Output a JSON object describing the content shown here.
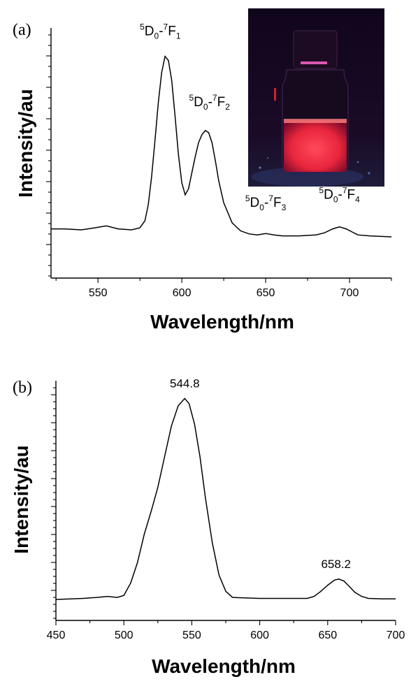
{
  "chart_data": [
    {
      "panel": "(a)",
      "type": "line",
      "xlabel": "Wavelength/nm",
      "ylabel": "Intensity/au",
      "xlim": [
        522,
        725
      ],
      "ylim": [
        0,
        1.0
      ],
      "x_ticks": [
        550,
        600,
        650,
        700
      ],
      "y_tick_labels": false,
      "x": [
        522,
        530,
        540,
        548,
        555,
        562,
        570,
        575,
        578,
        580,
        582,
        584,
        586,
        588,
        590,
        592,
        594,
        596,
        598,
        600,
        602,
        604,
        606,
        608,
        610,
        612,
        614,
        616,
        618,
        620,
        622,
        625,
        630,
        635,
        640,
        645,
        650,
        655,
        660,
        670,
        680,
        685,
        690,
        694,
        698,
        705,
        712,
        725
      ],
      "series": [
        {
          "values": [
            0.12,
            0.12,
            0.115,
            0.125,
            0.135,
            0.12,
            0.115,
            0.125,
            0.16,
            0.24,
            0.38,
            0.56,
            0.75,
            0.9,
            0.98,
            0.96,
            0.86,
            0.68,
            0.49,
            0.35,
            0.29,
            0.32,
            0.4,
            0.48,
            0.55,
            0.59,
            0.61,
            0.6,
            0.55,
            0.46,
            0.36,
            0.25,
            0.15,
            0.11,
            0.095,
            0.09,
            0.097,
            0.09,
            0.085,
            0.085,
            0.09,
            0.1,
            0.12,
            0.13,
            0.12,
            0.09,
            0.085,
            0.08
          ]
        }
      ],
      "annotations": [
        {
          "x": 590.5,
          "y": 0.98,
          "sup": "5",
          "base": "D",
          "sub": "0",
          "sup2": "7",
          "base2": "F",
          "sub2": "1",
          "dx": -8,
          "dy": -30
        },
        {
          "x": 614,
          "y": 0.61,
          "sup": "5",
          "base": "D",
          "sub": "0",
          "sup2": "7",
          "base2": "F",
          "sub2": "2",
          "dx": 6,
          "dy": -35
        },
        {
          "x": 650,
          "y": 0.097,
          "sup": "5",
          "base": "D",
          "sub": "0",
          "sup2": "7",
          "base2": "F",
          "sub2": "3",
          "dx": 0,
          "dy": -38
        },
        {
          "x": 694,
          "y": 0.13,
          "sup": "5",
          "base": "D",
          "sub": "0",
          "sup2": "7",
          "base2": "F",
          "sub2": "4",
          "dx": 0,
          "dy": -40
        }
      ]
    },
    {
      "panel": "(b)",
      "type": "line",
      "xlabel": "Wavelength/nm",
      "ylabel": "Intensity/au",
      "xlim": [
        450,
        700
      ],
      "ylim": [
        0,
        1.0
      ],
      "x_ticks": [
        450,
        500,
        550,
        600,
        650,
        700
      ],
      "y_tick_labels": false,
      "x": [
        450,
        470,
        480,
        488,
        495,
        500,
        505,
        510,
        515,
        520,
        525,
        530,
        535,
        540,
        544.8,
        548,
        552,
        556,
        560,
        565,
        570,
        575,
        580,
        600,
        620,
        635,
        640,
        645,
        650,
        655,
        658.2,
        662,
        665,
        670,
        675,
        680,
        690,
        700
      ],
      "series": [
        {
          "values": [
            0.0,
            0.005,
            0.01,
            0.015,
            0.01,
            0.02,
            0.08,
            0.18,
            0.32,
            0.43,
            0.55,
            0.7,
            0.85,
            0.95,
            0.985,
            0.96,
            0.86,
            0.7,
            0.5,
            0.28,
            0.12,
            0.04,
            0.01,
            0.005,
            0.005,
            0.005,
            0.015,
            0.04,
            0.07,
            0.095,
            0.1,
            0.09,
            0.07,
            0.035,
            0.015,
            0.005,
            0.003,
            0.003
          ]
        }
      ],
      "annotations": [
        {
          "x": 544.8,
          "y": 0.985,
          "text": "544.8",
          "dx": 0,
          "dy": -16
        },
        {
          "x": 658.2,
          "y": 0.1,
          "text": "658.2",
          "dx": -4,
          "dy": -16
        }
      ]
    }
  ]
}
